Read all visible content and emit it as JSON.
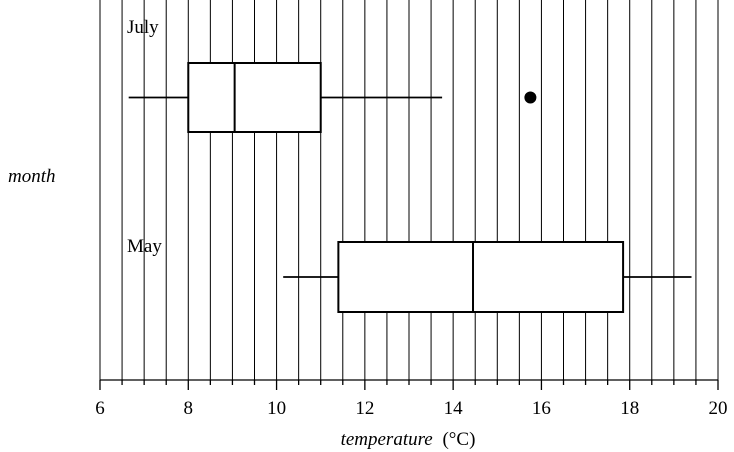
{
  "chart_data": {
    "type": "boxplot",
    "xlabel": "temperature",
    "xlabel_unit": "(°C)",
    "ylabel": "month",
    "xlim": [
      6,
      20
    ],
    "x_ticks": [
      "6",
      "8",
      "10",
      "12",
      "14",
      "16",
      "18",
      "20"
    ],
    "grid_step": 0.5,
    "series": [
      {
        "name": "July",
        "min": 6.65,
        "q1": 8.0,
        "median": 9.05,
        "q3": 11.0,
        "max": 13.75,
        "outliers": [
          15.75
        ]
      },
      {
        "name": "May",
        "min": 10.15,
        "q1": 11.4,
        "median": 14.45,
        "q3": 17.85,
        "max": 19.4,
        "outliers": []
      }
    ]
  }
}
